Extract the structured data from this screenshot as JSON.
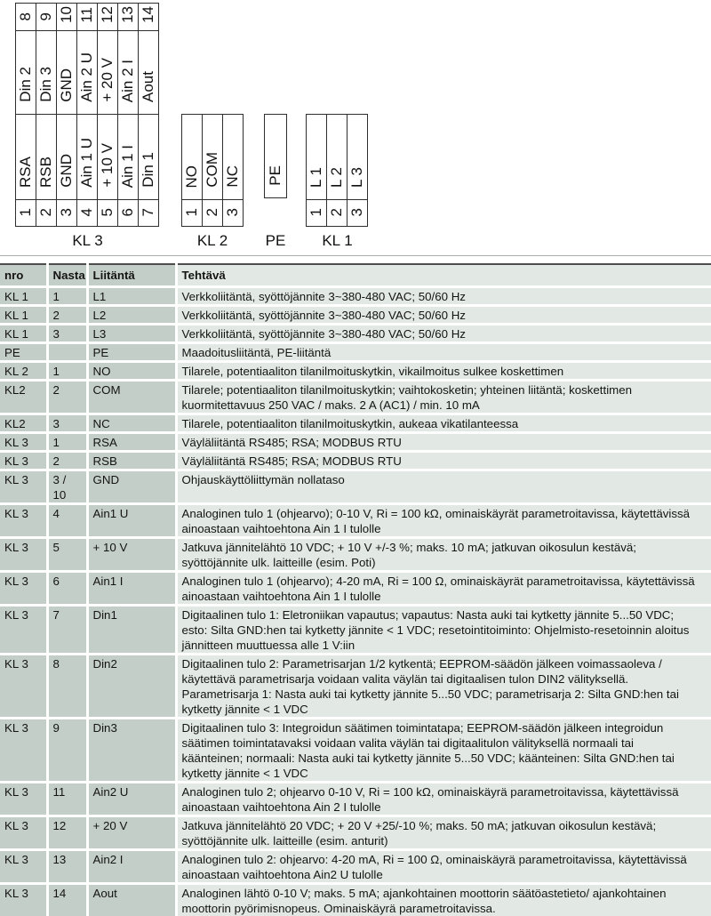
{
  "colors": {
    "table_cell_dark": "#c4cec9",
    "table_cell_light": "#e2e8e4",
    "table_top_border": "#4d4d4d",
    "divider_line": "#a9aeac",
    "diagram_line": "#2e2e2e",
    "text": "#141414"
  },
  "diagram": {
    "blocks": [
      {
        "id": "kl3",
        "caption": "KL 3",
        "top_numbers": [
          "8",
          "9",
          "10",
          "11",
          "12",
          "13",
          "14"
        ],
        "top_labels": [
          "Din 2",
          "Din 3",
          "GND",
          "Ain 2 U",
          "+ 20 V",
          "Ain 2 I",
          "Aout"
        ],
        "bottom_labels": [
          "RSA",
          "RSB",
          "GND",
          "Ain 1 U",
          "+ 10 V",
          "Ain 1 I",
          "Din 1"
        ],
        "bottom_numbers": [
          "1",
          "2",
          "3",
          "4",
          "5",
          "6",
          "7"
        ]
      },
      {
        "id": "kl2",
        "caption": "KL 2",
        "bottom_labels": [
          "NO",
          "COM",
          "NC"
        ],
        "bottom_numbers": [
          "1",
          "2",
          "3"
        ]
      },
      {
        "id": "pe",
        "caption": "PE",
        "pe_label_row": true,
        "bottom_labels": [
          "PE"
        ],
        "bottom_numbers": []
      },
      {
        "id": "kl1",
        "caption": "KL 1",
        "bottom_labels": [
          "L 1",
          "L 2",
          "L 3"
        ],
        "bottom_numbers": [
          "1",
          "2",
          "3"
        ]
      }
    ]
  },
  "table": {
    "headers": [
      "nro",
      "Nasta",
      "Liitäntä",
      "Tehtävä"
    ],
    "rows": [
      {
        "nro": "KL 1",
        "nasta": "1",
        "liitanta": "L1",
        "tehtava": "Verkkoliitäntä, syöttöjännite 3~380-480 VAC; 50/60 Hz"
      },
      {
        "nro": "KL 1",
        "nasta": "2",
        "liitanta": "L2",
        "tehtava": "Verkkoliitäntä, syöttöjännite 3~380-480 VAC; 50/60 Hz"
      },
      {
        "nro": "KL 1",
        "nasta": "3",
        "liitanta": "L3",
        "tehtava": "Verkkoliitäntä, syöttöjännite 3~380-480 VAC; 50/60 Hz"
      },
      {
        "nro": "PE",
        "nasta": "",
        "liitanta": "PE",
        "tehtava": "Maadoitusliitäntä, PE-liitäntä"
      },
      {
        "nro": "KL 2",
        "nasta": "1",
        "liitanta": "NO",
        "tehtava": "Tilarele, potentiaaliton tilanilmoituskytkin, vikailmoitus sulkee koskettimen"
      },
      {
        "nro": "KL2",
        "nasta": "2",
        "liitanta": "COM",
        "tehtava": "Tilarele; potentiaaliton tilanilmoituskytkin; vaihtokosketin; yhteinen liitäntä; koskettimen kuormitettavuus 250 VAC / maks. 2 A (AC1) / min. 10 mA"
      },
      {
        "nro": "KL2",
        "nasta": "3",
        "liitanta": "NC",
        "tehtava": "Tilarele, potentiaaliton tilanilmoituskytkin, aukeaa vikatilanteessa"
      },
      {
        "nro": "KL 3",
        "nasta": "1",
        "liitanta": "RSA",
        "tehtava": "Väyläliitäntä RS485; RSA; MODBUS RTU"
      },
      {
        "nro": "KL 3",
        "nasta": "2",
        "liitanta": "RSB",
        "tehtava": "Väyläliitäntä RS485; RSA; MODBUS RTU"
      },
      {
        "nro": "KL 3",
        "nasta": "3 / 10",
        "liitanta": "GND",
        "tehtava": "Ohjauskäyttöliittymän nollataso"
      },
      {
        "nro": "KL 3",
        "nasta": "4",
        "liitanta": "Ain1 U",
        "tehtava": "Analoginen tulo 1 (ohjearvo); 0-10 V, Ri = 100 kΩ, ominaiskäyrät parametroitavissa, käytettävissä ainoastaan vaihtoehtona Ain 1 I tulolle"
      },
      {
        "nro": "KL 3",
        "nasta": "5",
        "liitanta": "+ 10 V",
        "tehtava": "Jatkuva jännitelähtö 10 VDC; + 10 V +/-3 %; maks. 10 mA; jatkuvan oikosulun kestävä; syöttöjännite ulk. laitteille (esim. Poti)"
      },
      {
        "nro": "KL 3",
        "nasta": "6",
        "liitanta": "Ain1 I",
        "tehtava": "Analoginen tulo 1 (ohjearvo); 4-20 mA, Ri = 100 Ω, ominaiskäyrät parametroitavissa, käytettävissä ainoastaan vaihtoehtona Ain 1 I tulolle"
      },
      {
        "nro": "KL 3",
        "nasta": "7",
        "liitanta": "Din1",
        "tehtava": "Digitaalinen tulo 1: Eletroniikan vapautus; vapautus: Nasta auki tai kytketty jännite 5...50 VDC; esto: Silta GND:hen tai kytketty jännite < 1 VDC; resetointitoiminto: Ohjelmisto-resetoinnin aloitus jännitteen muuttuessa alle 1 V:iin"
      },
      {
        "nro": "KL 3",
        "nasta": "8",
        "liitanta": "Din2",
        "tehtava": "Digitaalinen tulo 2: Parametrisarjan 1/2 kytkentä; EEPROM-säädön jälkeen voimassaoleva / käytettävä parametrisarja voidaan valita väylän tai digitaalisen tulon DIN2 välityksellä. Parametrisarja 1: Nasta auki tai kytketty jännite 5...50 VDC; parametrisarja 2: Silta GND:hen tai kytketty jännite < 1 VDC"
      },
      {
        "nro": "KL 3",
        "nasta": "9",
        "liitanta": "Din3",
        "tehtava": "Digitaalinen tulo 3: Integroidun säätimen toimintatapa; EEPROM-säädön jälkeen integroidun säätimen toimintatavaksi voidaan valita väylän tai digitaalitulon välityksellä normaali tai käänteinen; normaali: Nasta auki tai kytketty jännite 5...50 VDC; käänteinen: Silta GND:hen tai kytketty jännite < 1 VDC"
      },
      {
        "nro": "KL 3",
        "nasta": "11",
        "liitanta": "Ain2 U",
        "tehtava": "Analoginen tulo 2; ohjearvo 0-10 V, Ri = 100 kΩ, ominaiskäyrä parametroitavissa, käytettävissä ainoastaan vaihtoehtona Ain 2 I tulolle"
      },
      {
        "nro": "KL 3",
        "nasta": "12",
        "liitanta": "+ 20 V",
        "tehtava": "Jatkuva jännitelähtö 20 VDC; + 20 V +25/-10 %; maks. 50 mA; jatkuvan oikosulun kestävä; syöttöjännite ulk. laitteille (esim. anturit)"
      },
      {
        "nro": "KL 3",
        "nasta": "13",
        "liitanta": "Ain2 I",
        "tehtava": "Analoginen tulo 2: ohjearvo: 4-20 mA, Ri = 100 Ω, ominaiskäyrä parametroitavissa, käytettävissä ainoastaan vaihtoehtona Ain2 U tulolle"
      },
      {
        "nro": "KL 3",
        "nasta": "14",
        "liitanta": "Aout",
        "tehtava": "Analoginen lähtö 0-10 V; maks. 5 mA; ajankohtainen moottorin säätöastetieto/ ajankohtainen moottorin pyörimisnopeus. Ominaiskäyrä parametroitavissa."
      }
    ]
  }
}
